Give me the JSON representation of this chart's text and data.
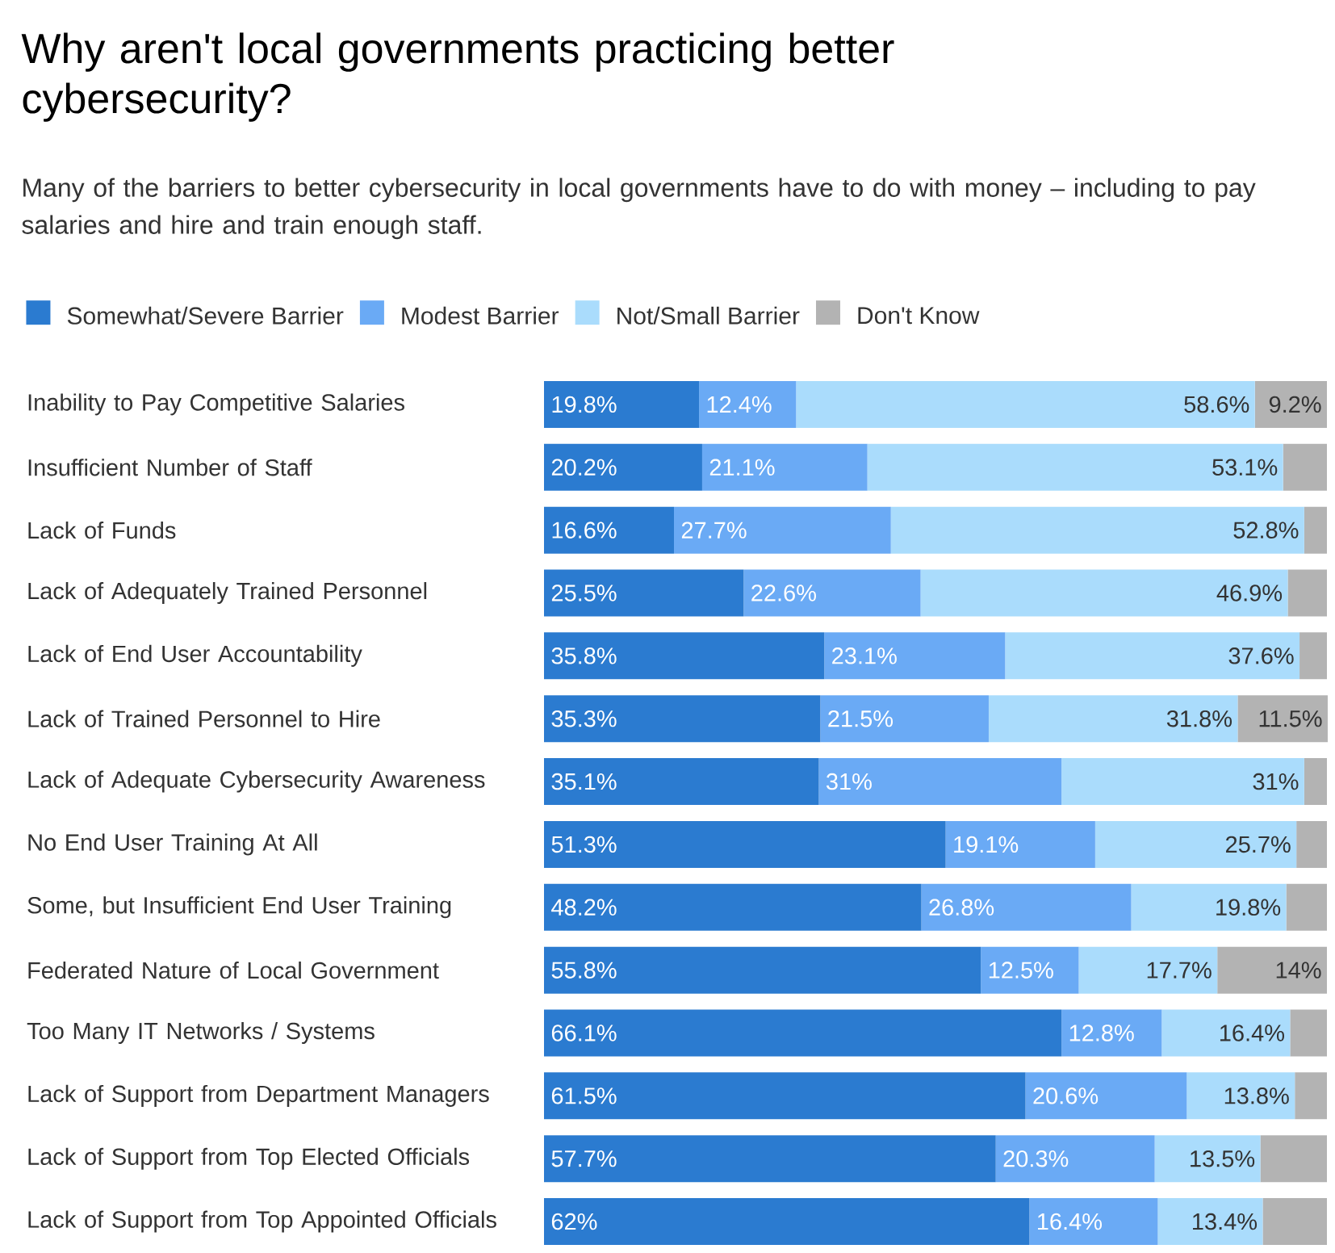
{
  "chart_data": {
    "type": "bar",
    "orientation": "horizontal",
    "stacked": true,
    "title": "Why aren't local governments practicing better cybersecurity?",
    "subtitle": "Many of the barriers to better cybersecurity in local governments have to do with money – including to pay salaries and hire and train enough staff.",
    "categories": [
      "Inability to Pay Competitive Salaries",
      "Insufficient Number of Staff",
      "Lack of Funds",
      "Lack of Adequately Trained Personnel",
      "Lack of End User Accountability",
      "Lack of Trained Personnel to Hire",
      "Lack of Adequate Cybersecurity Awareness",
      "No End User Training At All",
      "Some, but Insufficient End User Training",
      "Federated Nature of Local Government",
      "Too Many IT Networks / Systems",
      "Lack of Support from Department Managers",
      "Lack of Support from Top Elected Officials",
      "Lack of Support from Top Appointed Officials"
    ],
    "series": [
      {
        "name": "Somewhat/Severe Barrier",
        "color": "#2b7bd0",
        "values": [
          19.8,
          20.2,
          16.6,
          25.5,
          35.8,
          35.3,
          35.1,
          51.3,
          48.2,
          55.8,
          66.1,
          61.5,
          57.7,
          62
        ],
        "value_labels": [
          "19.8%",
          "20.2%",
          "16.6%",
          "25.5%",
          "35.8%",
          "35.3%",
          "35.1%",
          "51.3%",
          "48.2%",
          "55.8%",
          "66.1%",
          "61.5%",
          "57.7%",
          "62%"
        ]
      },
      {
        "name": "Modest Barrier",
        "color": "#6aaaf5",
        "values": [
          12.4,
          21.1,
          27.7,
          22.6,
          23.1,
          21.5,
          31,
          19.1,
          26.8,
          12.5,
          12.8,
          20.6,
          20.3,
          16.4
        ],
        "value_labels": [
          "12.4%",
          "21.1%",
          "27.7%",
          "22.6%",
          "23.1%",
          "21.5%",
          "31%",
          "19.1%",
          "26.8%",
          "12.5%",
          "12.8%",
          "20.6%",
          "20.3%",
          "16.4%"
        ]
      },
      {
        "name": "Not/Small Barrier",
        "color": "#aadcfc",
        "values": [
          58.6,
          53.1,
          52.8,
          46.9,
          37.6,
          31.8,
          31,
          25.7,
          19.8,
          17.7,
          16.4,
          13.8,
          13.5,
          13.4
        ],
        "value_labels": [
          "58.6%",
          "53.1%",
          "52.8%",
          "46.9%",
          "37.6%",
          "31.8%",
          "31%",
          "25.7%",
          "19.8%",
          "17.7%",
          "16.4%",
          "13.8%",
          "13.5%",
          "13.4%"
        ]
      },
      {
        "name": "Don't Know",
        "color": "#b3b3b3",
        "values": [
          9.2,
          5.6,
          2.9,
          5,
          3.5,
          11.5,
          2.9,
          3.9,
          5.2,
          14,
          4.7,
          4.1,
          8.5,
          8.2
        ],
        "value_labels": [
          "9.2%",
          null,
          null,
          null,
          null,
          "11.5%",
          null,
          null,
          null,
          "14%",
          null,
          null,
          null,
          null
        ]
      }
    ],
    "xlim": [
      0,
      100
    ],
    "tick_labels": "y",
    "legend": "top left"
  }
}
